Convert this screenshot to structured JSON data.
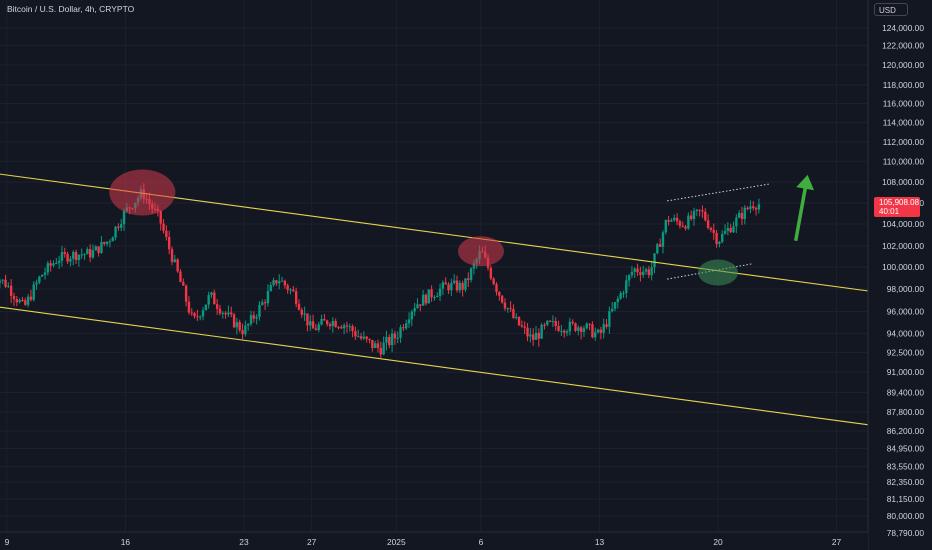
{
  "header": {
    "title": "Bitcoin / U.S. Dollar, 4h, CRYPTO",
    "currency": "USD"
  },
  "last_price": {
    "value": "105,908.08",
    "countdown": "40:01"
  },
  "colors": {
    "background": "#131722",
    "up": "#089981",
    "down": "#f23645",
    "channel": "#e8d44d",
    "marker_red": "#d33b4c",
    "marker_green": "#3d8f56",
    "arrow": "#3fae3f",
    "grid": "#1c202b"
  },
  "chart_data": {
    "type": "candlestick",
    "title": "Bitcoin / U.S. Dollar, 4h, CRYPTO",
    "xlabel": "",
    "ylabel": "",
    "grid": true,
    "legend": "none",
    "ylim": [
      78000,
      126000
    ],
    "y_ticks": [
      "124,000.00",
      "122,000.00",
      "120,000.00",
      "118,000.00",
      "116,000.00",
      "114,000.00",
      "112,000.00",
      "110,000.00",
      "108,000.00",
      "106,000.00",
      "104,000.00",
      "102,000.00",
      "100,000.00",
      "98,000.00",
      "96,000.00",
      "94,000.00",
      "92,500.00",
      "91,000.00",
      "89,400.00",
      "87,800.00",
      "86,200.00",
      "84,950.00",
      "83,550.00",
      "82,350.00",
      "81,150.00",
      "80,000.00",
      "78,790.00"
    ],
    "y_tick_values": [
      124000,
      122000,
      120000,
      118000,
      116000,
      114000,
      112000,
      110000,
      108000,
      106000,
      104000,
      102000,
      100000,
      98000,
      96000,
      94000,
      92500,
      91000,
      89400,
      87800,
      86200,
      84950,
      83550,
      82350,
      81150,
      80000,
      78790
    ],
    "x_ticks": [
      "9",
      "16",
      "23",
      "27",
      "2025",
      "6",
      "13",
      "20",
      "27"
    ],
    "x_tick_dates": [
      "2024-12-09",
      "2024-12-16",
      "2024-12-23",
      "2024-12-27",
      "2025-01-01",
      "2025-01-06",
      "2025-01-13",
      "2025-01-20",
      "2025-01-27"
    ],
    "x_start": "2024-12-08",
    "x_end": "2025-01-29",
    "candle_interval": "4h",
    "anchors": [
      [
        "2024-12-08",
        99500
      ],
      [
        "2024-12-09",
        98400
      ],
      [
        "2024-12-10",
        96300
      ],
      [
        "2024-12-11",
        99200
      ],
      [
        "2024-12-12",
        100800
      ],
      [
        "2024-12-13",
        101200
      ],
      [
        "2024-12-14",
        101300
      ],
      [
        "2024-12-15",
        102500
      ],
      [
        "2024-12-16",
        105200
      ],
      [
        "2024-12-17",
        107000
      ],
      [
        "2024-12-18",
        104500
      ],
      [
        "2024-12-19",
        99800
      ],
      [
        "2024-12-20",
        95000
      ],
      [
        "2024-12-21",
        97400
      ],
      [
        "2024-12-22",
        95600
      ],
      [
        "2024-12-23",
        94200
      ],
      [
        "2024-12-24",
        96500
      ],
      [
        "2024-12-25",
        99000
      ],
      [
        "2024-12-26",
        97500
      ],
      [
        "2024-12-27",
        94300
      ],
      [
        "2024-12-28",
        95200
      ],
      [
        "2024-12-29",
        94800
      ],
      [
        "2024-12-30",
        93500
      ],
      [
        "2024-12-31",
        92800
      ],
      [
        "2025-01-01",
        93800
      ],
      [
        "2025-01-02",
        96500
      ],
      [
        "2025-01-03",
        97500
      ],
      [
        "2025-01-04",
        98300
      ],
      [
        "2025-01-05",
        98200
      ],
      [
        "2025-01-06",
        101500
      ],
      [
        "2025-01-07",
        97800
      ],
      [
        "2025-01-08",
        95200
      ],
      [
        "2025-01-09",
        93500
      ],
      [
        "2025-01-10",
        94800
      ],
      [
        "2025-01-11",
        94600
      ],
      [
        "2025-01-12",
        94700
      ],
      [
        "2025-01-13",
        93800
      ],
      [
        "2025-01-14",
        96800
      ],
      [
        "2025-01-15",
        99800
      ],
      [
        "2025-01-16",
        99600
      ],
      [
        "2025-01-17",
        104500
      ],
      [
        "2025-01-18",
        104000
      ],
      [
        "2025-01-19",
        105200
      ],
      [
        "2025-01-20",
        102500
      ],
      [
        "2025-01-21",
        104200
      ],
      [
        "2025-01-22",
        105908
      ]
    ],
    "lines": [
      {
        "name": "",
        "style": "solid",
        "color": "#e8d44d",
        "from": [
          "2024-12-08",
          108900
        ],
        "to": [
          "2025-01-29",
          97800
        ]
      },
      {
        "name": "",
        "style": "solid",
        "color": "#e8d44d",
        "from": [
          "2024-12-08",
          96500
        ],
        "to": [
          "2025-01-29",
          86700
        ]
      },
      {
        "name": "",
        "style": "dotted",
        "color": "#d1d4dc",
        "from": [
          "2025-01-17",
          106200
        ],
        "to": [
          "2025-01-23",
          107800
        ]
      },
      {
        "name": "",
        "style": "dotted",
        "color": "#d1d4dc",
        "from": [
          "2025-01-17",
          98900
        ],
        "to": [
          "2025-01-22",
          100300
        ]
      }
    ],
    "markers": [
      {
        "color": "red",
        "at": [
          "2024-12-17",
          107000
        ]
      },
      {
        "color": "red",
        "at": [
          "2025-01-06",
          101500
        ]
      },
      {
        "color": "green",
        "at": [
          "2025-01-20",
          99500
        ]
      }
    ],
    "arrow": {
      "color": "green",
      "direction": "up",
      "from": [
        "2025-01-24",
        104500
      ],
      "to": [
        "2025-01-25",
        108400
      ]
    }
  }
}
